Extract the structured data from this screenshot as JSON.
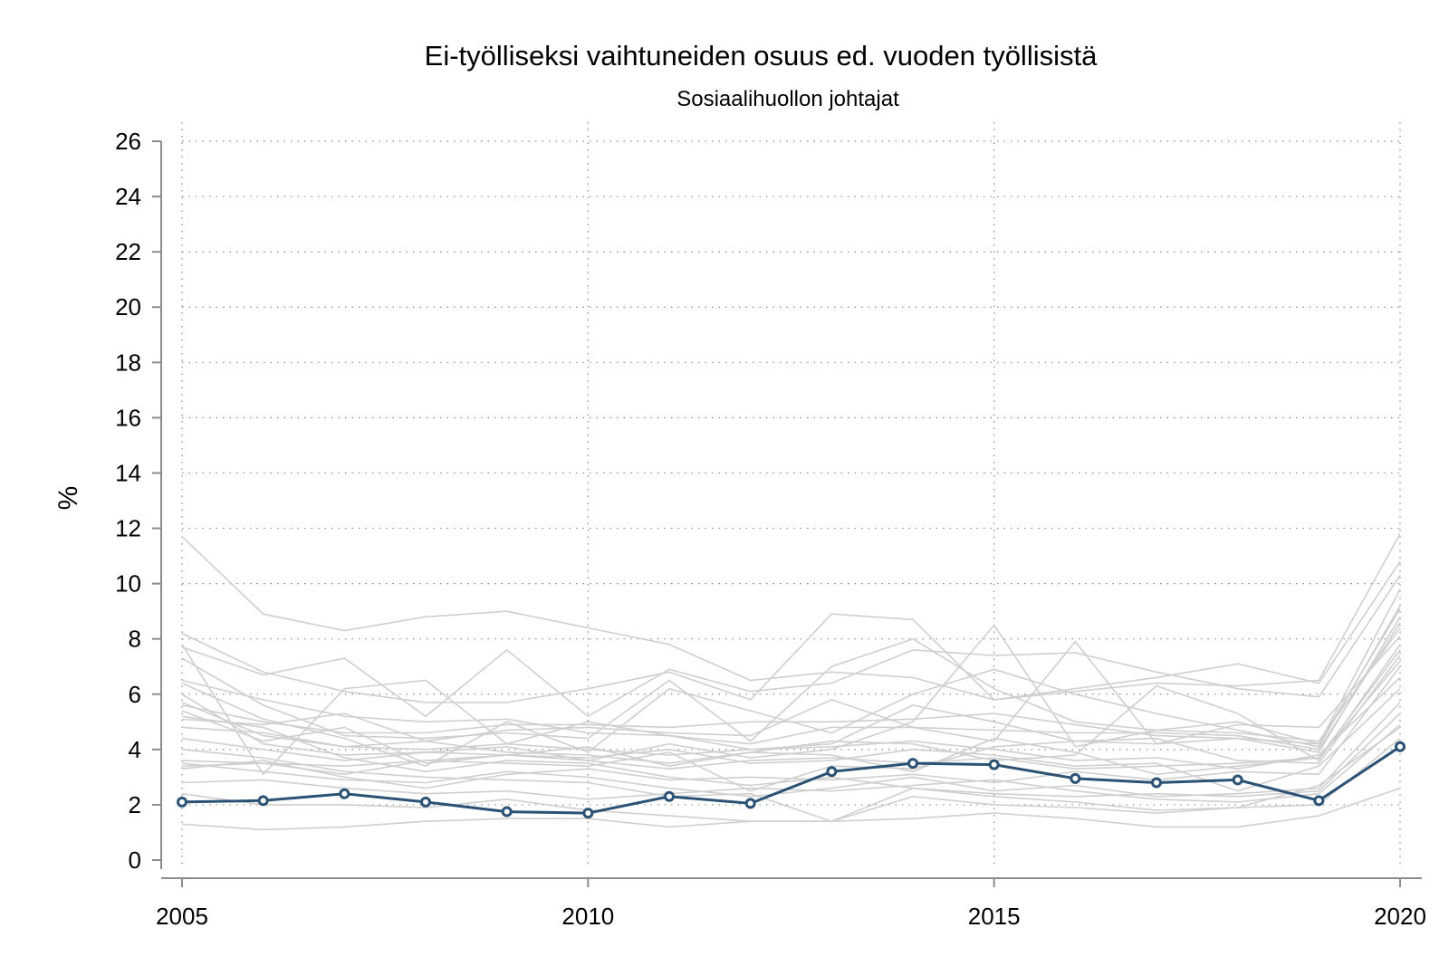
{
  "chart_data": {
    "type": "line",
    "title": "Ei-työlliseksi vaihtuneiden osuus ed. vuoden työllisistä",
    "subtitle": "Sosiaalihuollon johtajat",
    "ylabel": "%",
    "xlabel": "",
    "xlim": [
      2005,
      2020
    ],
    "ylim": [
      0,
      26
    ],
    "x_ticks": [
      2005,
      2010,
      2015,
      2020
    ],
    "y_ticks": [
      0,
      2,
      4,
      6,
      8,
      10,
      12,
      14,
      16,
      18,
      20,
      22,
      24,
      26
    ],
    "grid": true,
    "colors": {
      "highlight": "#2b5275",
      "background": "#cfcfcf"
    },
    "x": [
      2005,
      2006,
      2007,
      2008,
      2009,
      2010,
      2011,
      2012,
      2013,
      2014,
      2015,
      2016,
      2017,
      2018,
      2019,
      2020
    ],
    "highlight_series": {
      "values": [
        2.1,
        2.15,
        2.4,
        2.1,
        1.75,
        1.7,
        2.3,
        2.05,
        3.2,
        3.5,
        3.45,
        2.95,
        2.8,
        2.9,
        2.15,
        4.1
      ]
    },
    "background_series": [
      {
        "values": [
          11.7,
          8.9,
          8.3,
          8.8,
          9.0,
          8.4,
          7.8,
          6.5,
          6.8,
          6.6,
          5.8,
          6.1,
          6.4,
          6.3,
          6.5,
          11.8
        ]
      },
      {
        "values": [
          8.2,
          6.8,
          6.1,
          5.7,
          5.7,
          6.2,
          6.8,
          5.8,
          8.9,
          8.7,
          5.8,
          6.2,
          6.6,
          7.1,
          6.4,
          10.8
        ]
      },
      {
        "values": [
          7.7,
          6.7,
          7.3,
          5.2,
          7.6,
          5.2,
          6.9,
          6.1,
          6.4,
          7.6,
          7.4,
          7.5,
          6.8,
          6.2,
          5.9,
          10.3
        ]
      },
      {
        "values": [
          7.3,
          5.6,
          4.5,
          4.4,
          4.6,
          4.4,
          6.5,
          4.3,
          7.0,
          8.0,
          6.2,
          5.0,
          4.7,
          5.0,
          4.2,
          9.8
        ]
      },
      {
        "values": [
          6.4,
          5.1,
          4.4,
          3.4,
          5.0,
          3.9,
          6.2,
          5.4,
          4.6,
          6.0,
          6.9,
          6.0,
          5.3,
          4.7,
          4.1,
          9.2
        ]
      },
      {
        "values": [
          7.8,
          3.1,
          6.2,
          6.5,
          4.2,
          5.0,
          4.5,
          4.0,
          4.2,
          5.6,
          5.0,
          4.3,
          4.2,
          4.4,
          3.9,
          8.8
        ]
      },
      {
        "values": [
          5.4,
          4.3,
          4.8,
          3.5,
          3.8,
          3.6,
          4.2,
          3.7,
          4.0,
          5.0,
          8.5,
          4.1,
          4.7,
          4.6,
          4.3,
          8.4
        ]
      },
      {
        "values": [
          5.1,
          4.9,
          5.3,
          4.3,
          4.7,
          4.8,
          4.6,
          4.5,
          5.8,
          4.8,
          4.3,
          7.9,
          4.2,
          4.9,
          4.8,
          8.1
        ]
      },
      {
        "values": [
          4.8,
          4.6,
          4.1,
          4.3,
          3.9,
          3.8,
          3.5,
          3.9,
          4.3,
          4.2,
          3.6,
          3.8,
          6.3,
          5.3,
          3.6,
          7.8
        ]
      },
      {
        "values": [
          4.4,
          4.0,
          3.6,
          3.9,
          4.1,
          3.6,
          3.3,
          3.6,
          3.7,
          3.5,
          3.7,
          3.3,
          3.4,
          3.5,
          3.7,
          7.6
        ]
      },
      {
        "values": [
          3.6,
          3.5,
          3.1,
          3.6,
          3.5,
          3.4,
          3.9,
          2.5,
          3.4,
          3.3,
          4.1,
          4.3,
          4.4,
          3.6,
          3.5,
          7.4
        ]
      },
      {
        "values": [
          3.3,
          3.6,
          3.0,
          2.6,
          3.1,
          3.3,
          2.9,
          3.0,
          2.9,
          3.1,
          2.8,
          3.2,
          2.9,
          3.2,
          3.1,
          7.0
        ]
      },
      {
        "values": [
          6.0,
          4.2,
          3.8,
          3.9,
          3.8,
          3.7,
          4.0,
          3.5,
          3.6,
          4.0,
          3.8,
          3.4,
          3.5,
          2.5,
          3.4,
          6.2
        ]
      },
      {
        "values": [
          3.5,
          3.2,
          2.9,
          2.8,
          3.2,
          3.0,
          2.6,
          2.3,
          2.6,
          3.0,
          2.5,
          2.7,
          2.3,
          2.4,
          2.6,
          5.7
        ]
      },
      {
        "values": [
          5.2,
          4.8,
          3.7,
          3.2,
          3.6,
          3.5,
          3.0,
          2.7,
          3.0,
          2.6,
          2.4,
          2.3,
          2.4,
          2.3,
          2.5,
          5.3
        ]
      },
      {
        "values": [
          2.8,
          2.9,
          2.6,
          2.4,
          2.5,
          2.2,
          2.4,
          2.6,
          2.5,
          2.7,
          2.9,
          2.5,
          2.2,
          2.1,
          2.4,
          4.9
        ]
      },
      {
        "values": [
          2.4,
          2.0,
          2.0,
          1.9,
          2.2,
          1.8,
          1.6,
          1.4,
          1.4,
          2.3,
          2.0,
          1.9,
          1.7,
          1.9,
          2.0,
          4.4
        ]
      },
      {
        "values": [
          1.3,
          1.1,
          1.2,
          1.4,
          1.5,
          1.5,
          1.2,
          1.4,
          1.4,
          1.5,
          1.7,
          1.5,
          1.2,
          1.2,
          1.6,
          2.6
        ]
      },
      {
        "values": [
          4.0,
          3.7,
          3.2,
          3.0,
          2.9,
          2.8,
          2.3,
          2.4,
          1.4,
          2.6,
          2.3,
          2.1,
          1.8,
          1.9,
          2.7,
          4.8
        ]
      },
      {
        "values": [
          5.6,
          5.0,
          4.6,
          4.6,
          4.9,
          4.9,
          4.8,
          5.0,
          5.0,
          5.1,
          5.3,
          4.9,
          4.5,
          4.4,
          4.2,
          9.1
        ]
      },
      {
        "values": [
          6.5,
          5.8,
          5.2,
          5.0,
          5.1,
          4.6,
          4.5,
          4.2,
          4.8,
          4.8,
          4.7,
          4.6,
          4.6,
          4.5,
          4.0,
          8.6
        ]
      },
      {
        "values": [
          3.4,
          3.5,
          3.4,
          3.6,
          3.8,
          4.1,
          3.4,
          3.9,
          3.8,
          3.2,
          4.4,
          3.9,
          3.1,
          3.4,
          3.7,
          7.2
        ]
      },
      {
        "values": [
          5.7,
          4.5,
          4.1,
          4.0,
          4.2,
          4.0,
          3.8,
          4.0,
          4.1,
          4.3,
          4.0,
          3.6,
          3.7,
          3.3,
          3.8,
          6.6
        ]
      }
    ]
  }
}
